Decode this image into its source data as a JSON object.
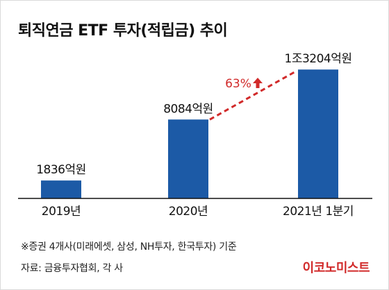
{
  "title": "퇴직연금 ETF 투자(적립금) 추이",
  "chart_data": {
    "type": "bar",
    "categories": [
      "2019년",
      "2020년",
      "2021년 1분기"
    ],
    "values": [
      1836,
      8084,
      13204
    ],
    "value_labels": [
      "1836억원",
      "8084억원",
      "1조3204억원"
    ],
    "unit": "억원",
    "ylim": [
      0,
      14500
    ],
    "bar_color": "#1c5aa6",
    "annotation": {
      "text": "63%",
      "from_category": "2020년",
      "to_category": "2021년 1분기",
      "color": "#d12a2a",
      "style": "dashed-arrow-up"
    },
    "grid": false,
    "legend": "none"
  },
  "footnote": "※증권 4개사(미래에셋, 삼성, NH투자, 한국투자) 기준",
  "source": "자료: 금융투자협회, 각 사",
  "brand": "이코노미스트",
  "colors": {
    "bar": "#1c5aa6",
    "accent": "#d12a2a",
    "baseline": "#111111"
  }
}
